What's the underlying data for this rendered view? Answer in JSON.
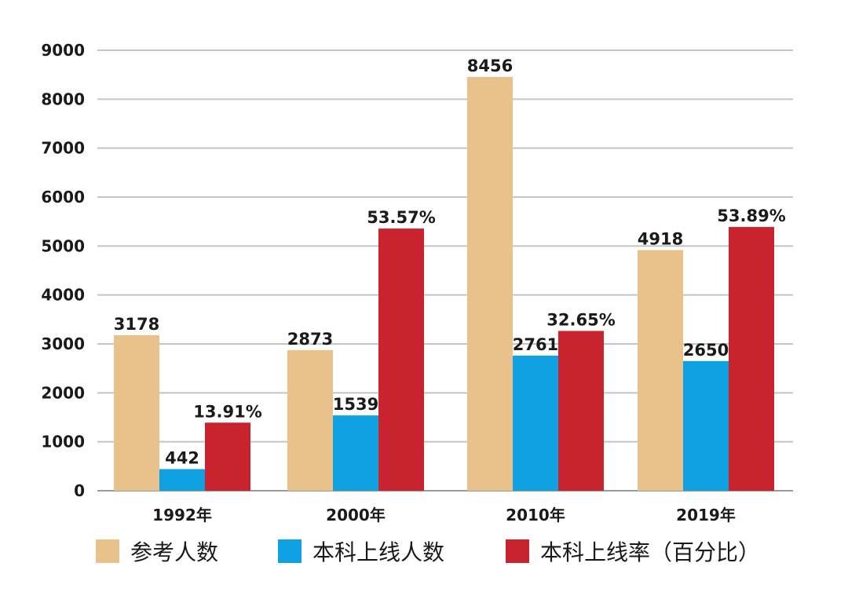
{
  "chart_data": {
    "type": "bar",
    "categories": [
      "1992年",
      "2000年",
      "2010年",
      "2019年"
    ],
    "series": [
      {
        "name": "参考人数",
        "color": "#E8C28A",
        "values": [
          3178,
          2873,
          8456,
          4918
        ],
        "labels": [
          "3178",
          "2873",
          "8456",
          "4918"
        ]
      },
      {
        "name": "本科上线人数",
        "color": "#10A1E2",
        "values": [
          442,
          1539,
          2761,
          2650
        ],
        "labels": [
          "442",
          "1539",
          "2761",
          "2650"
        ]
      },
      {
        "name": "本科上线率（百分比）",
        "color": "#C8232F",
        "values": [
          13.91,
          53.57,
          32.65,
          53.89
        ],
        "labels": [
          "13.91%",
          "53.57%",
          "32.65%",
          "53.89%"
        ]
      }
    ],
    "y_ticks": [
      "0",
      "1000",
      "2000",
      "3000",
      "4000",
      "5000",
      "6000",
      "7000",
      "8000",
      "9000"
    ],
    "ylim": [
      0,
      9000
    ],
    "grid": true,
    "legend_position": "bottom"
  }
}
